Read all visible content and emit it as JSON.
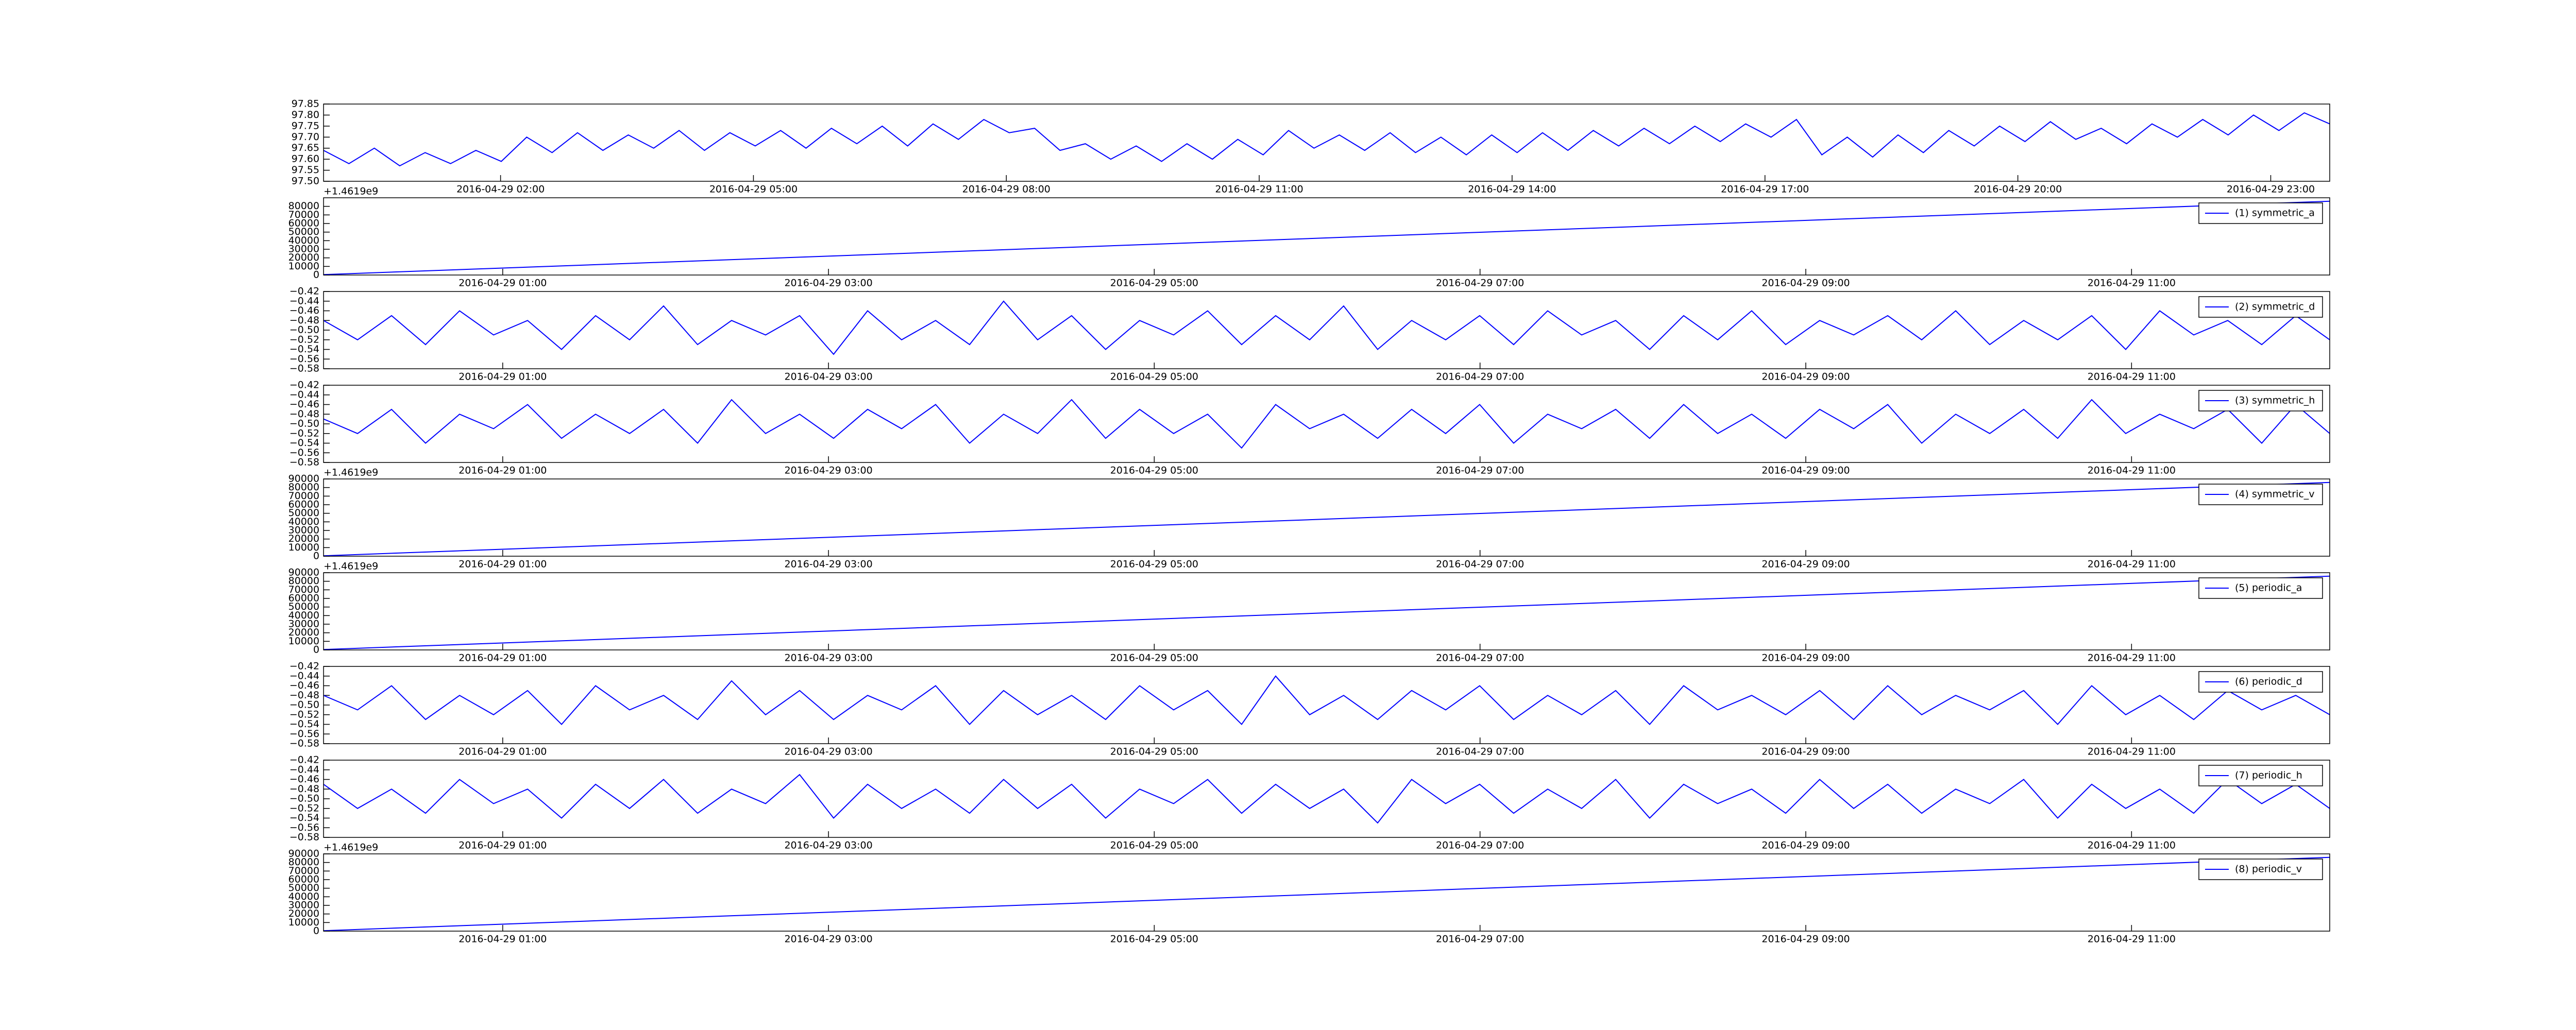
{
  "chart_data": [
    {
      "type": "line",
      "xlim": [
        "2016-04-28 23:54",
        "2016-04-29 23:42"
      ],
      "xticks": [
        "2016-04-29 02:00",
        "2016-04-29 05:00",
        "2016-04-29 08:00",
        "2016-04-29 11:00",
        "2016-04-29 14:00",
        "2016-04-29 17:00",
        "2016-04-29 20:00",
        "2016-04-29 23:00"
      ],
      "ylim": [
        97.5,
        97.85
      ],
      "yticks": [
        {
          "value": 97.5,
          "label": "97.50"
        },
        97.55,
        {
          "value": 97.6,
          "label": "97.60"
        },
        97.65,
        {
          "value": 97.7,
          "label": "97.70"
        },
        97.75,
        {
          "value": 97.8,
          "label": "97.80"
        },
        97.85
      ],
      "series": [
        {
          "color": "#0000ff",
          "values": [
            97.64,
            97.58,
            97.65,
            97.57,
            97.63,
            97.58,
            97.64,
            97.59,
            97.7,
            97.63,
            97.72,
            97.64,
            97.71,
            97.65,
            97.73,
            97.64,
            97.72,
            97.66,
            97.73,
            97.65,
            97.74,
            97.67,
            97.75,
            97.66,
            97.76,
            97.69,
            97.78,
            97.72,
            97.74,
            97.64,
            97.67,
            97.6,
            97.66,
            97.59,
            97.67,
            97.6,
            97.69,
            97.62,
            97.73,
            97.65,
            97.71,
            97.64,
            97.72,
            97.63,
            97.7,
            97.62,
            97.71,
            97.63,
            97.72,
            97.64,
            97.73,
            97.66,
            97.74,
            97.67,
            97.75,
            97.68,
            97.76,
            97.7,
            97.78,
            97.62,
            97.7,
            97.61,
            97.71,
            97.63,
            97.73,
            97.66,
            97.75,
            97.68,
            97.77,
            97.69,
            97.74,
            97.67,
            97.76,
            97.7,
            97.78,
            97.71,
            97.8,
            97.73,
            97.81,
            97.76
          ]
        }
      ]
    },
    {
      "type": "line",
      "xlim": [
        "2016-04-28 23:54",
        "2016-04-29 12:13"
      ],
      "xticks": [
        "2016-04-29 01:00",
        "2016-04-29 03:00",
        "2016-04-29 05:00",
        "2016-04-29 07:00",
        "2016-04-29 09:00",
        "2016-04-29 11:00"
      ],
      "ylim": [
        0,
        90000
      ],
      "yticks": [
        0,
        10000,
        20000,
        30000,
        40000,
        50000,
        60000,
        70000,
        80000
      ],
      "offset_text": "+1.4619e9",
      "series": [
        {
          "name": "(1) symmetric_a",
          "color": "#0000ff",
          "values": [
            500,
            86000
          ]
        }
      ]
    },
    {
      "type": "line",
      "xlim": [
        "2016-04-28 23:54",
        "2016-04-29 12:13"
      ],
      "xticks": [
        "2016-04-29 01:00",
        "2016-04-29 03:00",
        "2016-04-29 05:00",
        "2016-04-29 07:00",
        "2016-04-29 09:00",
        "2016-04-29 11:00"
      ],
      "ylim": [
        -0.58,
        -0.42
      ],
      "yticks": [
        {
          "value": -0.58,
          "label": "−0.58"
        },
        {
          "value": -0.56,
          "label": "−0.56"
        },
        {
          "value": -0.54,
          "label": "−0.54"
        },
        {
          "value": -0.52,
          "label": "−0.52"
        },
        {
          "value": -0.5,
          "label": "−0.50"
        },
        {
          "value": -0.48,
          "label": "−0.48"
        },
        {
          "value": -0.46,
          "label": "−0.46"
        },
        {
          "value": -0.44,
          "label": "−0.44"
        },
        {
          "value": -0.42,
          "label": "−0.42"
        }
      ],
      "series": [
        {
          "name": "(2) symmetric_d",
          "color": "#0000ff",
          "values": [
            -0.48,
            -0.52,
            -0.47,
            -0.53,
            -0.46,
            -0.51,
            -0.48,
            -0.54,
            -0.47,
            -0.52,
            -0.45,
            -0.53,
            -0.48,
            -0.51,
            -0.47,
            -0.55,
            -0.46,
            -0.52,
            -0.48,
            -0.53,
            -0.44,
            -0.52,
            -0.47,
            -0.54,
            -0.48,
            -0.51,
            -0.46,
            -0.53,
            -0.47,
            -0.52,
            -0.45,
            -0.54,
            -0.48,
            -0.52,
            -0.47,
            -0.53,
            -0.46,
            -0.51,
            -0.48,
            -0.54,
            -0.47,
            -0.52,
            -0.46,
            -0.53,
            -0.48,
            -0.51,
            -0.47,
            -0.52,
            -0.46,
            -0.53,
            -0.48,
            -0.52,
            -0.47,
            -0.54,
            -0.46,
            -0.51,
            -0.48,
            -0.53,
            -0.47,
            -0.52
          ]
        }
      ]
    },
    {
      "type": "line",
      "xlim": [
        "2016-04-28 23:54",
        "2016-04-29 12:13"
      ],
      "xticks": [
        "2016-04-29 01:00",
        "2016-04-29 03:00",
        "2016-04-29 05:00",
        "2016-04-29 07:00",
        "2016-04-29 09:00",
        "2016-04-29 11:00"
      ],
      "ylim": [
        -0.58,
        -0.42
      ],
      "yticks": [
        {
          "value": -0.58,
          "label": "−0.58"
        },
        {
          "value": -0.56,
          "label": "−0.56"
        },
        {
          "value": -0.54,
          "label": "−0.54"
        },
        {
          "value": -0.52,
          "label": "−0.52"
        },
        {
          "value": -0.5,
          "label": "−0.50"
        },
        {
          "value": -0.48,
          "label": "−0.48"
        },
        {
          "value": -0.46,
          "label": "−0.46"
        },
        {
          "value": -0.44,
          "label": "−0.44"
        },
        {
          "value": -0.42,
          "label": "−0.42"
        }
      ],
      "series": [
        {
          "name": "(3) symmetric_h",
          "color": "#0000ff",
          "values": [
            -0.49,
            -0.52,
            -0.47,
            -0.54,
            -0.48,
            -0.51,
            -0.46,
            -0.53,
            -0.48,
            -0.52,
            -0.47,
            -0.54,
            -0.45,
            -0.52,
            -0.48,
            -0.53,
            -0.47,
            -0.51,
            -0.46,
            -0.54,
            -0.48,
            -0.52,
            -0.45,
            -0.53,
            -0.47,
            -0.52,
            -0.48,
            -0.55,
            -0.46,
            -0.51,
            -0.48,
            -0.53,
            -0.47,
            -0.52,
            -0.46,
            -0.54,
            -0.48,
            -0.51,
            -0.47,
            -0.53,
            -0.46,
            -0.52,
            -0.48,
            -0.53,
            -0.47,
            -0.51,
            -0.46,
            -0.54,
            -0.48,
            -0.52,
            -0.47,
            -0.53,
            -0.45,
            -0.52,
            -0.48,
            -0.51,
            -0.47,
            -0.54,
            -0.46,
            -0.52
          ]
        }
      ]
    },
    {
      "type": "line",
      "xlim": [
        "2016-04-28 23:54",
        "2016-04-29 12:13"
      ],
      "xticks": [
        "2016-04-29 01:00",
        "2016-04-29 03:00",
        "2016-04-29 05:00",
        "2016-04-29 07:00",
        "2016-04-29 09:00",
        "2016-04-29 11:00"
      ],
      "ylim": [
        0,
        90000
      ],
      "yticks": [
        0,
        10000,
        20000,
        30000,
        40000,
        50000,
        60000,
        70000,
        80000,
        90000
      ],
      "offset_text": "+1.4619e9",
      "series": [
        {
          "name": "(4) symmetric_v",
          "color": "#0000ff",
          "values": [
            500,
            86000
          ]
        }
      ]
    },
    {
      "type": "line",
      "xlim": [
        "2016-04-28 23:54",
        "2016-04-29 12:13"
      ],
      "xticks": [
        "2016-04-29 01:00",
        "2016-04-29 03:00",
        "2016-04-29 05:00",
        "2016-04-29 07:00",
        "2016-04-29 09:00",
        "2016-04-29 11:00"
      ],
      "ylim": [
        0,
        90000
      ],
      "yticks": [
        0,
        10000,
        20000,
        30000,
        40000,
        50000,
        60000,
        70000,
        80000,
        90000
      ],
      "offset_text": "+1.4619e9",
      "series": [
        {
          "name": "(5) periodic_a",
          "color": "#0000ff",
          "values": [
            500,
            86000
          ]
        }
      ]
    },
    {
      "type": "line",
      "xlim": [
        "2016-04-28 23:54",
        "2016-04-29 12:13"
      ],
      "xticks": [
        "2016-04-29 01:00",
        "2016-04-29 03:00",
        "2016-04-29 05:00",
        "2016-04-29 07:00",
        "2016-04-29 09:00",
        "2016-04-29 11:00"
      ],
      "ylim": [
        -0.58,
        -0.42
      ],
      "yticks": [
        {
          "value": -0.58,
          "label": "−0.58"
        },
        {
          "value": -0.56,
          "label": "−0.56"
        },
        {
          "value": -0.54,
          "label": "−0.54"
        },
        {
          "value": -0.52,
          "label": "−0.52"
        },
        {
          "value": -0.5,
          "label": "−0.50"
        },
        {
          "value": -0.48,
          "label": "−0.48"
        },
        {
          "value": -0.46,
          "label": "−0.46"
        },
        {
          "value": -0.44,
          "label": "−0.44"
        },
        {
          "value": -0.42,
          "label": "−0.42"
        }
      ],
      "series": [
        {
          "name": "(6) periodic_d",
          "color": "#0000ff",
          "values": [
            -0.48,
            -0.51,
            -0.46,
            -0.53,
            -0.48,
            -0.52,
            -0.47,
            -0.54,
            -0.46,
            -0.51,
            -0.48,
            -0.53,
            -0.45,
            -0.52,
            -0.47,
            -0.53,
            -0.48,
            -0.51,
            -0.46,
            -0.54,
            -0.47,
            -0.52,
            -0.48,
            -0.53,
            -0.46,
            -0.51,
            -0.47,
            -0.54,
            -0.44,
            -0.52,
            -0.48,
            -0.53,
            -0.47,
            -0.51,
            -0.46,
            -0.53,
            -0.48,
            -0.52,
            -0.47,
            -0.54,
            -0.46,
            -0.51,
            -0.48,
            -0.52,
            -0.47,
            -0.53,
            -0.46,
            -0.52,
            -0.48,
            -0.51,
            -0.47,
            -0.54,
            -0.46,
            -0.52,
            -0.48,
            -0.53,
            -0.47,
            -0.51,
            -0.48,
            -0.52
          ]
        }
      ]
    },
    {
      "type": "line",
      "xlim": [
        "2016-04-28 23:54",
        "2016-04-29 12:13"
      ],
      "xticks": [
        "2016-04-29 01:00",
        "2016-04-29 03:00",
        "2016-04-29 05:00",
        "2016-04-29 07:00",
        "2016-04-29 09:00",
        "2016-04-29 11:00"
      ],
      "ylim": [
        -0.58,
        -0.42
      ],
      "yticks": [
        {
          "value": -0.58,
          "label": "−0.58"
        },
        {
          "value": -0.56,
          "label": "−0.56"
        },
        {
          "value": -0.54,
          "label": "−0.54"
        },
        {
          "value": -0.52,
          "label": "−0.52"
        },
        {
          "value": -0.5,
          "label": "−0.50"
        },
        {
          "value": -0.48,
          "label": "−0.48"
        },
        {
          "value": -0.46,
          "label": "−0.46"
        },
        {
          "value": -0.44,
          "label": "−0.44"
        },
        {
          "value": -0.42,
          "label": "−0.42"
        }
      ],
      "series": [
        {
          "name": "(7) periodic_h",
          "color": "#0000ff",
          "values": [
            -0.47,
            -0.52,
            -0.48,
            -0.53,
            -0.46,
            -0.51,
            -0.48,
            -0.54,
            -0.47,
            -0.52,
            -0.46,
            -0.53,
            -0.48,
            -0.51,
            -0.45,
            -0.54,
            -0.47,
            -0.52,
            -0.48,
            -0.53,
            -0.46,
            -0.52,
            -0.47,
            -0.54,
            -0.48,
            -0.51,
            -0.46,
            -0.53,
            -0.47,
            -0.52,
            -0.48,
            -0.55,
            -0.46,
            -0.51,
            -0.47,
            -0.53,
            -0.48,
            -0.52,
            -0.46,
            -0.54,
            -0.47,
            -0.51,
            -0.48,
            -0.53,
            -0.46,
            -0.52,
            -0.47,
            -0.53,
            -0.48,
            -0.51,
            -0.46,
            -0.54,
            -0.47,
            -0.52,
            -0.48,
            -0.53,
            -0.46,
            -0.51,
            -0.47,
            -0.52
          ]
        }
      ]
    },
    {
      "type": "line",
      "xlim": [
        "2016-04-28 23:54",
        "2016-04-29 12:13"
      ],
      "xticks": [
        "2016-04-29 01:00",
        "2016-04-29 03:00",
        "2016-04-29 05:00",
        "2016-04-29 07:00",
        "2016-04-29 09:00",
        "2016-04-29 11:00"
      ],
      "ylim": [
        0,
        90000
      ],
      "yticks": [
        0,
        10000,
        20000,
        30000,
        40000,
        50000,
        60000,
        70000,
        80000,
        90000
      ],
      "offset_text": "+1.4619e9",
      "series": [
        {
          "name": "(8) periodic_v",
          "color": "#0000ff",
          "values": [
            500,
            86000
          ]
        }
      ]
    }
  ]
}
